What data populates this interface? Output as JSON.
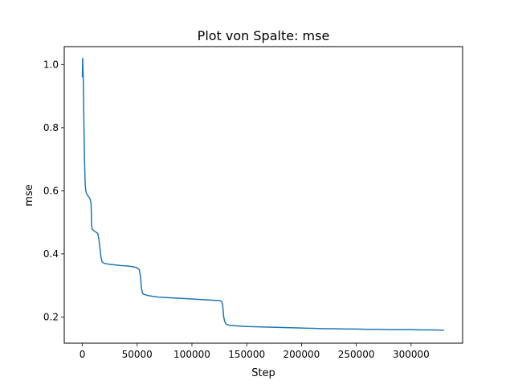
{
  "chart_data": {
    "type": "line",
    "title": "Plot von Spalte: mse",
    "xlabel": "Step",
    "ylabel": "mse",
    "xlim": [
      -16500,
      347000
    ],
    "ylim": [
      0.117,
      1.057
    ],
    "xticks": [
      0,
      50000,
      100000,
      150000,
      200000,
      250000,
      300000
    ],
    "xtick_labels": [
      "0",
      "50000",
      "100000",
      "150000",
      "200000",
      "250000",
      "300000"
    ],
    "yticks": [
      0.2,
      0.4,
      0.6,
      0.8,
      1.0
    ],
    "ytick_labels": [
      "0.2",
      "0.4",
      "0.6",
      "0.8",
      "1.0"
    ],
    "grid": false,
    "line_color": "#1f77b4",
    "series": [
      {
        "x": [
          0,
          300,
          600,
          1000,
          1500,
          2000,
          2500,
          3000,
          3500,
          4000,
          5000,
          6000,
          7000,
          8000,
          8500,
          9000,
          10000,
          12000,
          14000,
          15000,
          16000,
          17000,
          18000,
          20000,
          25000,
          30000,
          35000,
          40000,
          45000,
          48000,
          50000,
          52000,
          53000,
          54000,
          55000,
          56000,
          58000,
          60000,
          65000,
          70000,
          80000,
          90000,
          100000,
          110000,
          120000,
          125000,
          127000,
          128000,
          129000,
          130000,
          131000,
          133000,
          136000,
          140000,
          150000,
          160000,
          170000,
          180000,
          190000,
          200000,
          210000,
          220000,
          230000,
          240000,
          250000,
          260000,
          270000,
          280000,
          290000,
          300000,
          310000,
          320000,
          330000
        ],
        "y": [
          0.96,
          1.02,
          0.99,
          0.93,
          0.8,
          0.7,
          0.63,
          0.605,
          0.595,
          0.59,
          0.585,
          0.58,
          0.575,
          0.56,
          0.49,
          0.478,
          0.475,
          0.47,
          0.465,
          0.45,
          0.42,
          0.39,
          0.375,
          0.37,
          0.367,
          0.365,
          0.363,
          0.362,
          0.36,
          0.358,
          0.356,
          0.35,
          0.33,
          0.29,
          0.275,
          0.272,
          0.27,
          0.268,
          0.265,
          0.263,
          0.261,
          0.259,
          0.257,
          0.255,
          0.253,
          0.252,
          0.25,
          0.24,
          0.2,
          0.185,
          0.178,
          0.175,
          0.173,
          0.172,
          0.17,
          0.169,
          0.168,
          0.167,
          0.166,
          0.165,
          0.164,
          0.163,
          0.163,
          0.162,
          0.162,
          0.161,
          0.161,
          0.16,
          0.16,
          0.16,
          0.159,
          0.159,
          0.158
        ]
      }
    ]
  }
}
